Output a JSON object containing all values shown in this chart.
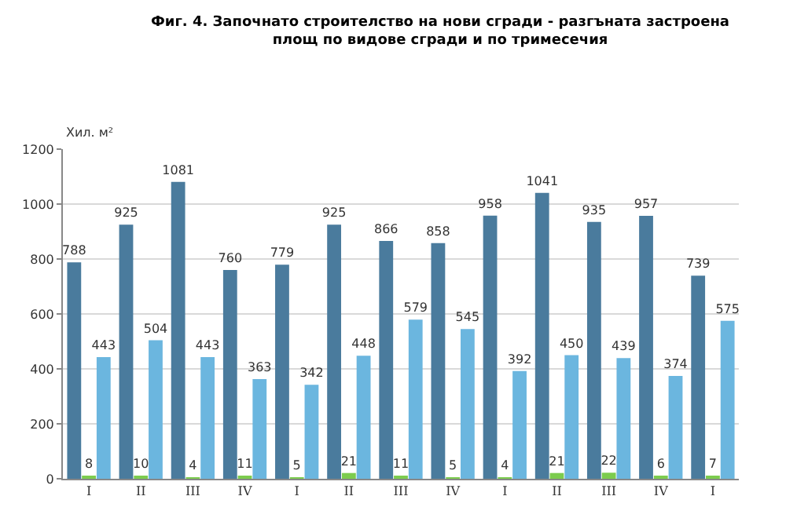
{
  "chart_data": {
    "type": "bar",
    "title": "Фиг. 4. Започнато строителство на нови сгради - разгъната застроена\nплощ по видове сгради и по тримесечия",
    "ylabel": "Хил. м²",
    "categories": [
      "I",
      "II",
      "III",
      "IV",
      "I",
      "II",
      "III",
      "IV",
      "I",
      "II",
      "III",
      "IV",
      "I"
    ],
    "series": [
      {
        "color": "#4a7b9d",
        "values": [
          788,
          925,
          1081,
          760,
          779,
          925,
          866,
          858,
          958,
          1041,
          935,
          957,
          739
        ]
      },
      {
        "color": "#7ccc4e",
        "values": [
          8,
          10,
          4,
          11,
          5,
          21,
          11,
          5,
          4,
          21,
          22,
          6,
          7
        ]
      },
      {
        "color": "#6bb6df",
        "values": [
          443,
          504,
          443,
          363,
          342,
          448,
          579,
          545,
          392,
          450,
          439,
          374,
          575
        ]
      }
    ],
    "ylim": [
      0,
      1200
    ],
    "yticks": [
      0,
      200,
      400,
      600,
      800,
      1000,
      1200
    ],
    "grid": "y",
    "data_labels": true
  }
}
